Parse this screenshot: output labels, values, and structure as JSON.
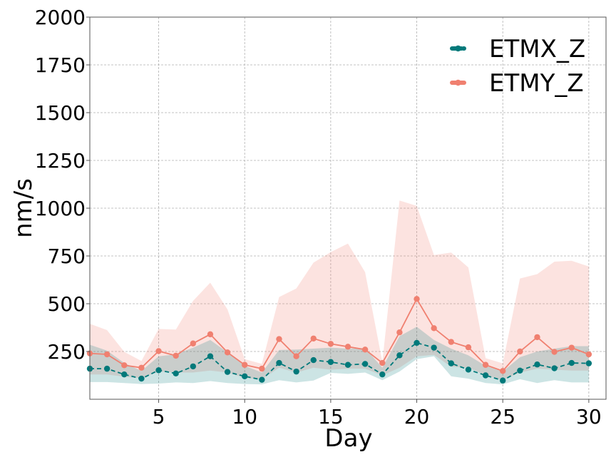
{
  "chart_data": {
    "type": "line",
    "xlabel": "Day",
    "ylabel": "nm/s",
    "xlim": [
      1,
      31
    ],
    "ylim": [
      0,
      2000
    ],
    "x_ticks": [
      5,
      10,
      15,
      20,
      25,
      30
    ],
    "y_ticks": [
      250,
      500,
      750,
      1000,
      1250,
      1500,
      1750,
      2000
    ],
    "grid": true,
    "legend_position": "top-right",
    "x": [
      1,
      2,
      3,
      4,
      5,
      6,
      7,
      8,
      9,
      10,
      11,
      12,
      13,
      14,
      15,
      16,
      17,
      18,
      19,
      20,
      21,
      22,
      23,
      24,
      25,
      26,
      27,
      28,
      29,
      30
    ],
    "series": [
      {
        "name": "ETMX_Z",
        "color": "#00797a",
        "line_style": "dashed",
        "values": [
          160,
          160,
          130,
          108,
          152,
          135,
          172,
          225,
          143,
          120,
          102,
          190,
          145,
          205,
          195,
          180,
          185,
          130,
          230,
          295,
          270,
          188,
          155,
          125,
          98,
          150,
          182,
          162,
          190,
          188
        ],
        "band_low": [
          90,
          90,
          85,
          80,
          82,
          88,
          85,
          95,
          85,
          80,
          78,
          100,
          88,
          98,
          138,
          133,
          140,
          100,
          145,
          210,
          225,
          120,
          108,
          85,
          78,
          105,
          85,
          100,
          88,
          88
        ],
        "band_high": [
          285,
          255,
          190,
          148,
          225,
          235,
          270,
          310,
          245,
          175,
          140,
          258,
          260,
          265,
          270,
          265,
          268,
          165,
          330,
          380,
          310,
          265,
          230,
          175,
          145,
          220,
          250,
          265,
          278,
          278
        ]
      },
      {
        "name": "ETMY_Z",
        "color": "#f08070",
        "line_style": "solid",
        "values": [
          240,
          235,
          178,
          165,
          252,
          228,
          292,
          340,
          245,
          180,
          160,
          315,
          225,
          318,
          290,
          275,
          260,
          190,
          350,
          525,
          372,
          300,
          272,
          180,
          148,
          250,
          325,
          248,
          270,
          235
        ],
        "band_low": [
          130,
          130,
          118,
          110,
          145,
          140,
          140,
          150,
          140,
          112,
          105,
          165,
          140,
          165,
          155,
          160,
          160,
          125,
          165,
          225,
          232,
          170,
          165,
          125,
          100,
          140,
          160,
          155,
          150,
          150
        ],
        "band_high": [
          395,
          362,
          248,
          200,
          368,
          365,
          515,
          610,
          470,
          210,
          185,
          535,
          580,
          715,
          770,
          815,
          665,
          195,
          1040,
          1012,
          755,
          768,
          690,
          215,
          188,
          632,
          655,
          720,
          725,
          695
        ]
      }
    ]
  }
}
